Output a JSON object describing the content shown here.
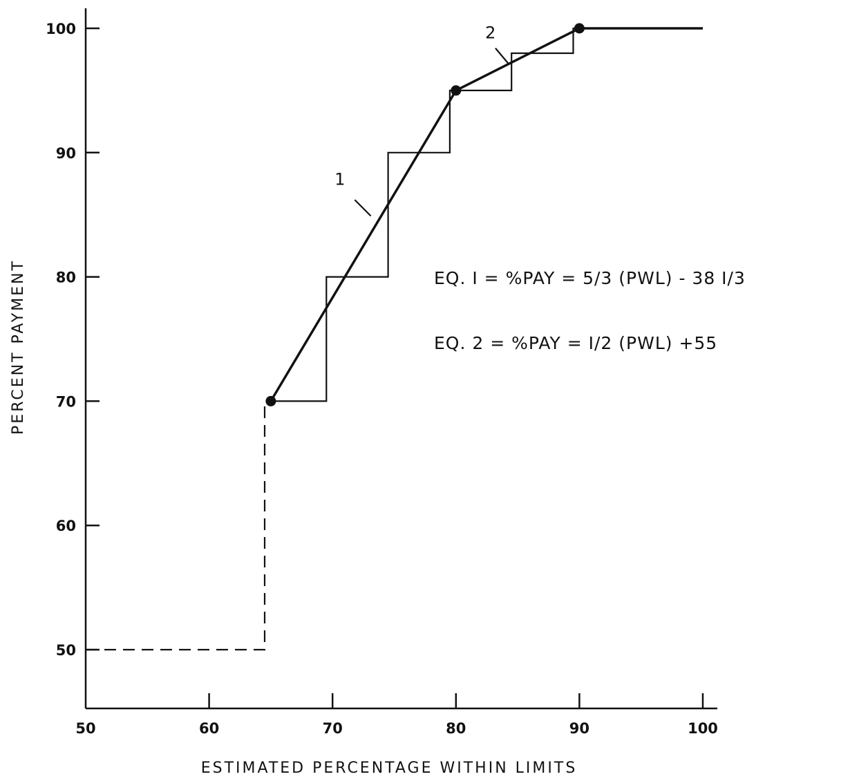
{
  "chart_data": {
    "type": "line",
    "title": "",
    "xlabel": "ESTIMATED PERCENTAGE WITHIN LIMITS",
    "ylabel": "PERCENT PAYMENT",
    "xlim": [
      50,
      100
    ],
    "ylim": [
      45,
      100
    ],
    "x_ticks": [
      50,
      60,
      70,
      80,
      90,
      100
    ],
    "x_tick_labels": [
      "50",
      "60",
      "70",
      "80",
      "90",
      "100"
    ],
    "y_ticks": [
      50,
      60,
      70,
      80,
      90,
      100
    ],
    "y_tick_labels": [
      "50",
      "60",
      "70",
      "80",
      "90",
      "100"
    ],
    "grid": false,
    "series": [
      {
        "style": "solid-bold",
        "x": [
          65,
          80,
          90,
          100
        ],
        "y": [
          70,
          95,
          100,
          100
        ]
      },
      {
        "style": "dashed",
        "x": [
          50,
          64.5,
          64.5,
          65
        ],
        "y": [
          50,
          50,
          70,
          70
        ]
      },
      {
        "style": "step",
        "x": [
          65,
          69.5,
          69.5,
          74.5,
          74.5,
          79.5,
          79.5,
          84.5,
          84.5,
          89.5,
          89.5,
          90
        ],
        "y": [
          70,
          70,
          80,
          80,
          90,
          90,
          95,
          95,
          98,
          98,
          100,
          100
        ]
      }
    ],
    "markers": [
      {
        "x": 65,
        "y": 70
      },
      {
        "x": 80,
        "y": 95
      },
      {
        "x": 90,
        "y": 100
      }
    ],
    "leader_labels": [
      {
        "text": "1",
        "segment": 1
      },
      {
        "text": "2",
        "segment": 2
      }
    ],
    "annotations": [
      "EQ. I  =  %PAY  =  5/3  (PWL)  - 38 I/3",
      "EQ. 2  =  %PAY  =  I/2  (PWL)  +55"
    ]
  }
}
